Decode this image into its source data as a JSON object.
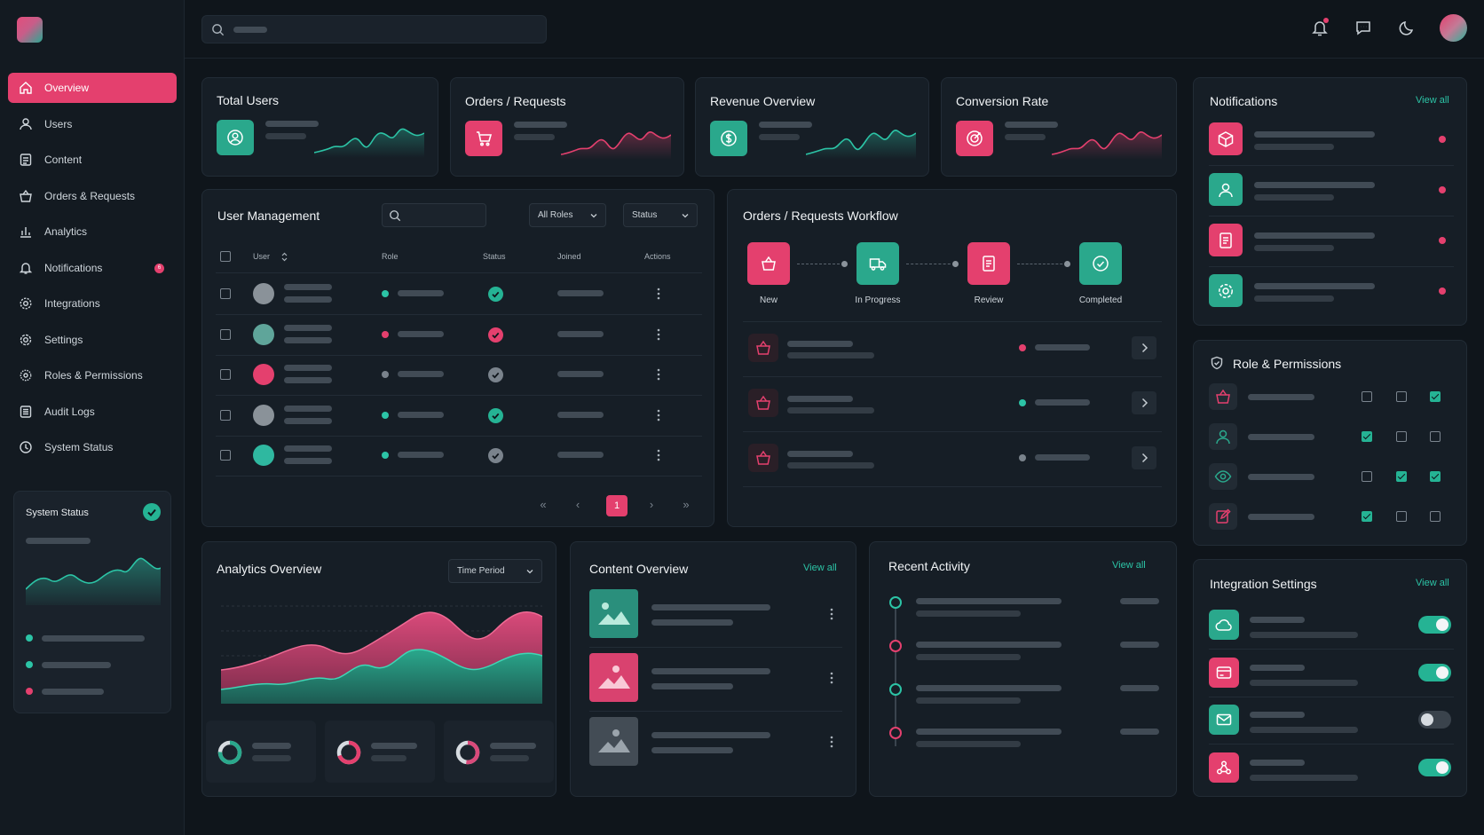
{
  "nav": {
    "items": [
      {
        "label": "Overview",
        "icon": "home-icon",
        "active": true
      },
      {
        "label": "Users",
        "icon": "user-icon"
      },
      {
        "label": "Content",
        "icon": "document-icon"
      },
      {
        "label": "Orders & Requests",
        "icon": "basket-icon"
      },
      {
        "label": "Analytics",
        "icon": "bar-chart-icon"
      },
      {
        "label": "Notifications",
        "icon": "bell-icon",
        "badge": "6"
      },
      {
        "label": "Integrations",
        "icon": "integrations-gear-icon"
      },
      {
        "label": "Settings",
        "icon": "gear-icon"
      },
      {
        "label": "Roles & Permissions",
        "icon": "shield-gear-icon"
      },
      {
        "label": "Audit Logs",
        "icon": "log-icon"
      },
      {
        "label": "System Status",
        "icon": "status-icon"
      }
    ]
  },
  "system_status": {
    "title": "System Status"
  },
  "stats": [
    {
      "title": "Total Users",
      "icon": "user-circle-icon",
      "color": "#2aa88c"
    },
    {
      "title": "Orders / Requests",
      "icon": "cart-icon",
      "color": "#e4406e"
    },
    {
      "title": "Revenue Overview",
      "icon": "dollar-icon",
      "color": "#2aa88c"
    },
    {
      "title": "Conversion Rate",
      "icon": "target-icon",
      "color": "#e4406e"
    }
  ],
  "user_management": {
    "title": "User Management",
    "roles_filter": "All Roles",
    "status_filter": "Status",
    "columns": {
      "user": "User",
      "role": "Role",
      "status": "Status",
      "joined": "Joined",
      "actions": "Actions"
    },
    "rows": [
      {
        "avatar": "#8a9299",
        "role_dot": "g",
        "status": "check-green"
      },
      {
        "avatar": "#5fa59a",
        "role_dot": "r",
        "status": "check-red"
      },
      {
        "avatar": "#e4406e",
        "role_dot": "gy",
        "status": "check-grey"
      },
      {
        "avatar": "#8a9299",
        "role_dot": "g",
        "status": "check-green"
      },
      {
        "avatar": "#2fb8a0",
        "role_dot": "g",
        "status": "check-grey"
      }
    ],
    "page": "1"
  },
  "workflow": {
    "title": "Orders / Requests Workflow",
    "steps": [
      {
        "label": "New",
        "icon": "basket-icon",
        "color": "#e4406e"
      },
      {
        "label": "In Progress",
        "icon": "truck-icon",
        "color": "#2aa88c"
      },
      {
        "label": "Review",
        "icon": "document-icon",
        "color": "#e4406e"
      },
      {
        "label": "Completed",
        "icon": "check-circle-icon",
        "color": "#2aa88c"
      }
    ],
    "items": [
      {
        "dot": "r"
      },
      {
        "dot": "g"
      },
      {
        "dot": "gy"
      }
    ]
  },
  "notifications": {
    "title": "Notifications",
    "view_all": "View all",
    "items": [
      {
        "icon": "box-icon",
        "color": "#e4406e"
      },
      {
        "icon": "user-icon",
        "color": "#2aa88c"
      },
      {
        "icon": "document-icon",
        "color": "#e4406e"
      },
      {
        "icon": "gear-icon",
        "color": "#2aa88c"
      }
    ]
  },
  "roles": {
    "title": "Role & Permissions",
    "rows": [
      {
        "icon": "basket-icon",
        "color": "#e4406e",
        "checks": [
          false,
          false,
          true
        ]
      },
      {
        "icon": "user-icon",
        "color": "#2aa88c",
        "checks": [
          true,
          false,
          false
        ]
      },
      {
        "icon": "eye-icon",
        "color": "#2aa88c",
        "checks": [
          false,
          true,
          true
        ]
      },
      {
        "icon": "edit-icon",
        "color": "#e4406e",
        "checks": [
          true,
          false,
          false
        ]
      }
    ]
  },
  "analytics": {
    "title": "Analytics Overview",
    "period": "Time Period"
  },
  "content": {
    "title": "Content Overview",
    "view_all": "View all"
  },
  "activity": {
    "title": "Recent Activity",
    "view_all": "View all"
  },
  "integrations": {
    "title": "Integration Settings",
    "view_all": "View all",
    "items": [
      {
        "icon": "cloud-icon",
        "color": "#2aa88c",
        "on": true
      },
      {
        "icon": "card-icon",
        "color": "#e4406e",
        "on": true
      },
      {
        "icon": "mail-icon",
        "color": "#2aa88c",
        "on": false
      },
      {
        "icon": "webhook-icon",
        "color": "#e4406e",
        "on": true
      }
    ]
  }
}
